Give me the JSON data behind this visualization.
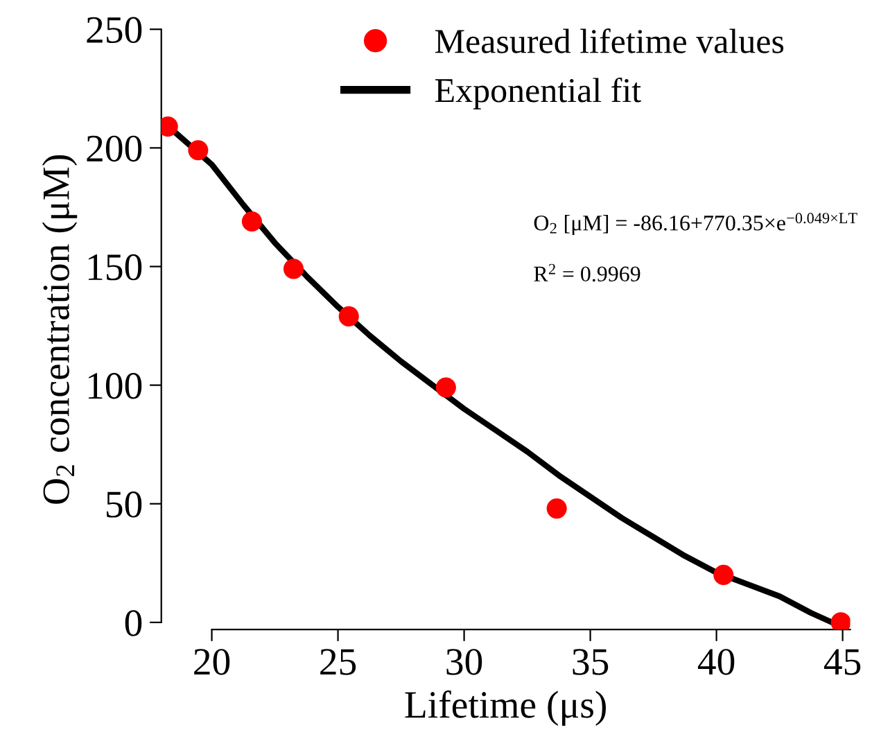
{
  "chart_data": {
    "type": "scatter",
    "xlabel": "Lifetime (μs)",
    "ylabel": "O$_{2}$ concentration (μM)",
    "xlim": [
      18,
      45.3
    ],
    "ylim": [
      -3,
      250
    ],
    "xticks": [
      20,
      25,
      30,
      35,
      40,
      45
    ],
    "yticks": [
      0,
      50,
      100,
      150,
      200,
      250
    ],
    "grid": false,
    "legend": "top right",
    "series": [
      {
        "name": "Measured lifetime values",
        "color": "#ff0000",
        "marker": "circle",
        "x": [
          18.26,
          19.46,
          21.59,
          23.24,
          25.43,
          29.28,
          33.67,
          40.28,
          44.93
        ],
        "values": [
          209,
          199,
          169,
          149,
          129,
          99,
          48,
          20,
          0
        ]
      },
      {
        "name": "Exponential fit",
        "type": "line",
        "color": "#000000",
        "marker": "none",
        "line_style": "solid",
        "x": [
          18.5,
          19.25,
          20,
          21.25,
          22.5,
          23.75,
          25,
          26.25,
          27.5,
          28.75,
          30,
          31.25,
          32.5,
          33.75,
          35,
          36.25,
          37.5,
          38.75,
          40,
          41.25,
          42.5,
          43.75,
          45
        ],
        "values": [
          207,
          200,
          193,
          176,
          160,
          146,
          133,
          121,
          110,
          100,
          90,
          81,
          72,
          62,
          53,
          44,
          36,
          28,
          21,
          16,
          11,
          4,
          -2
        ]
      }
    ],
    "annotations": [
      {
        "text": "O$_{2}$ [μM] = -86.16+770.35×e$^{−0.049×LT}$"
      },
      {
        "text": "R$^{2}$ = 0.9969"
      }
    ]
  }
}
